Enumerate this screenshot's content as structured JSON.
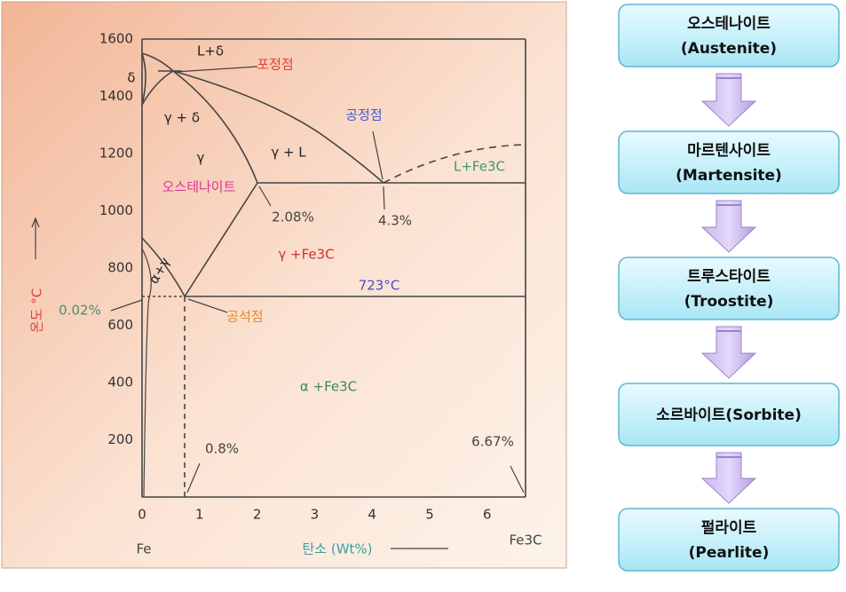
{
  "phase_diagram": {
    "y_ticks": [
      1600,
      1400,
      1200,
      1000,
      800,
      600,
      400,
      200
    ],
    "x_ticks": [
      0,
      1,
      2,
      3,
      4,
      5,
      6
    ],
    "labels": [
      "L+δ",
      "δ",
      "포정점",
      "γ + δ",
      "공정점",
      "γ",
      "γ + L",
      "L+Fe3C",
      "오스테나이트",
      "2.08%",
      "4.3%",
      "γ +Fe3C",
      "723°C",
      "α+γ",
      "0.02%",
      "공석점",
      "α +Fe3C",
      "0.8%",
      "6.67%",
      "Fe",
      "탄소 (Wt%)",
      "Fe3C",
      "온도 °C"
    ]
  },
  "flowchart": {
    "nodes": [
      {
        "name": "오스테나이트",
        "sub": "(Austenite)"
      },
      {
        "name": "마르텐사이트",
        "sub": "(Martensite)"
      },
      {
        "name": "트루스타이트",
        "sub": "(Troostite)"
      },
      {
        "name": "소르바이트(Sorbite)"
      },
      {
        "name": "펄라이트",
        "sub": "(Pearlite)"
      }
    ]
  }
}
